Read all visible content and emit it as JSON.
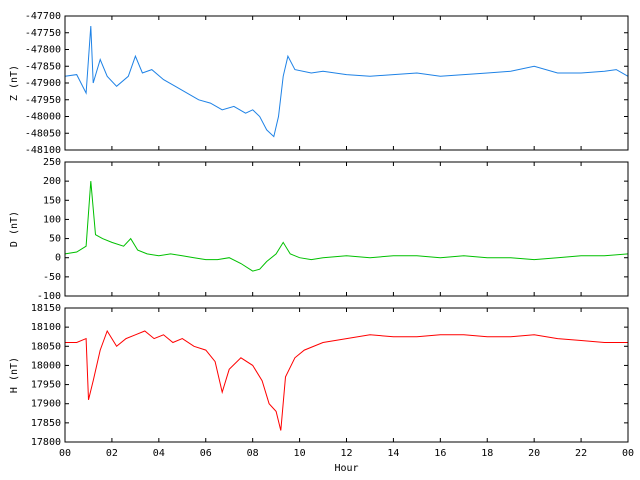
{
  "chart_data": [
    {
      "type": "line",
      "ylabel": "Z (nT)",
      "color": "#1e82e6",
      "ylim": [
        -48100,
        -47700
      ],
      "yticks": [
        -48100,
        -48050,
        -48000,
        -47950,
        -47900,
        -47850,
        -47800,
        -47750,
        -47700
      ],
      "xlim": [
        0,
        24
      ],
      "x": [
        0,
        0.5,
        0.9,
        1.1,
        1.2,
        1.5,
        1.8,
        2.2,
        2.7,
        3.0,
        3.3,
        3.7,
        4.2,
        4.7,
        5.2,
        5.7,
        6.2,
        6.7,
        7.2,
        7.7,
        8.0,
        8.3,
        8.6,
        8.9,
        9.1,
        9.3,
        9.5,
        9.8,
        10.5,
        11,
        12,
        13,
        14,
        15,
        16,
        17,
        18,
        19,
        20,
        21,
        22,
        23,
        23.5,
        24
      ],
      "values": [
        -47880,
        -47875,
        -47930,
        -47730,
        -47900,
        -47830,
        -47880,
        -47910,
        -47880,
        -47820,
        -47870,
        -47860,
        -47890,
        -47910,
        -47930,
        -47950,
        -47960,
        -47980,
        -47970,
        -47990,
        -47980,
        -48000,
        -48040,
        -48060,
        -48000,
        -47880,
        -47820,
        -47860,
        -47870,
        -47865,
        -47875,
        -47880,
        -47875,
        -47870,
        -47880,
        -47875,
        -47870,
        -47865,
        -47850,
        -47870,
        -47870,
        -47865,
        -47860,
        -47880
      ]
    },
    {
      "type": "line",
      "ylabel": "D (nT)",
      "color": "#00c000",
      "ylim": [
        -100,
        250
      ],
      "yticks": [
        -100,
        -50,
        0,
        50,
        100,
        150,
        200,
        250
      ],
      "xlim": [
        0,
        24
      ],
      "x": [
        0,
        0.5,
        0.9,
        1.1,
        1.3,
        1.6,
        2,
        2.5,
        2.8,
        3.1,
        3.5,
        4,
        4.5,
        5,
        5.5,
        6,
        6.5,
        7,
        7.5,
        8,
        8.3,
        8.6,
        9,
        9.3,
        9.6,
        10,
        10.5,
        11,
        12,
        13,
        14,
        15,
        16,
        17,
        18,
        19,
        20,
        21,
        22,
        23,
        24
      ],
      "values": [
        10,
        15,
        30,
        200,
        60,
        50,
        40,
        30,
        50,
        20,
        10,
        5,
        10,
        5,
        0,
        -5,
        -5,
        0,
        -15,
        -35,
        -30,
        -10,
        10,
        40,
        10,
        0,
        -5,
        0,
        5,
        0,
        5,
        5,
        0,
        5,
        0,
        0,
        -5,
        0,
        5,
        5,
        10
      ]
    },
    {
      "type": "line",
      "ylabel": "H (nT)",
      "xlabel": "Hour",
      "color": "#ff0000",
      "ylim": [
        17800,
        18150
      ],
      "yticks": [
        17800,
        17850,
        17900,
        17950,
        18000,
        18050,
        18100,
        18150
      ],
      "xlim": [
        0,
        24
      ],
      "xticks": [
        {
          "value": 0,
          "label": "00"
        },
        {
          "value": 2,
          "label": "02"
        },
        {
          "value": 4,
          "label": "04"
        },
        {
          "value": 6,
          "label": "06"
        },
        {
          "value": 8,
          "label": "08"
        },
        10,
        12,
        14,
        16,
        18,
        20,
        22,
        {
          "value": 24,
          "label": "00"
        }
      ],
      "x": [
        0,
        0.5,
        0.9,
        1.0,
        1.2,
        1.5,
        1.8,
        2.2,
        2.6,
        3.0,
        3.4,
        3.8,
        4.2,
        4.6,
        5.0,
        5.5,
        6.0,
        6.4,
        6.7,
        7.0,
        7.5,
        8.0,
        8.4,
        8.7,
        9.0,
        9.2,
        9.4,
        9.8,
        10.2,
        11,
        12,
        13,
        14,
        15,
        16,
        17,
        18,
        19,
        20,
        21,
        22,
        23,
        24
      ],
      "values": [
        18060,
        18060,
        18070,
        17910,
        17960,
        18040,
        18090,
        18050,
        18070,
        18080,
        18090,
        18070,
        18080,
        18060,
        18070,
        18050,
        18040,
        18010,
        17930,
        17990,
        18020,
        18000,
        17960,
        17900,
        17880,
        17830,
        17970,
        18020,
        18040,
        18060,
        18070,
        18080,
        18075,
        18075,
        18080,
        18080,
        18075,
        18075,
        18080,
        18070,
        18065,
        18060,
        18060
      ]
    }
  ]
}
